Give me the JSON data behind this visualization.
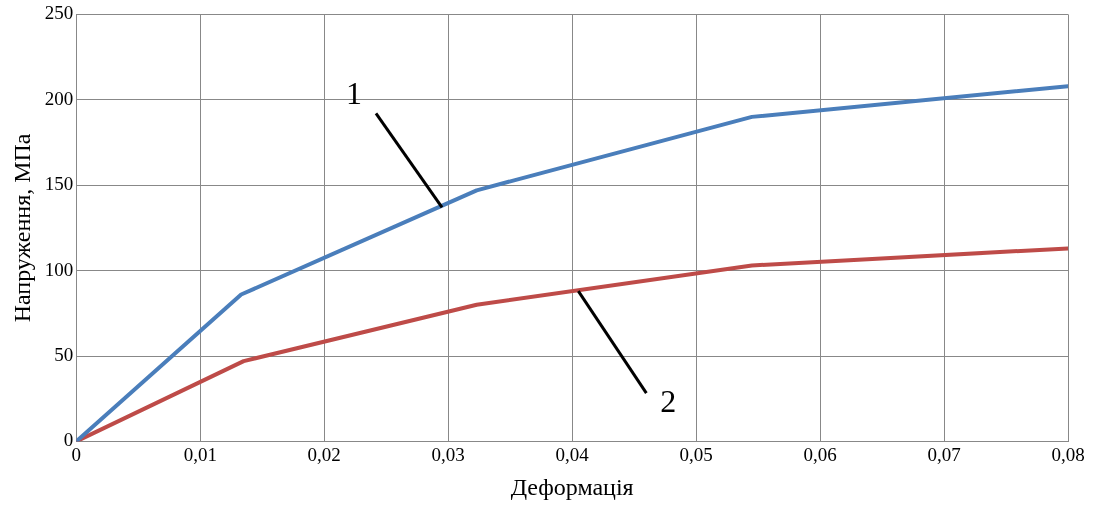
{
  "chart_data": {
    "type": "line",
    "xlabel": "Деформація",
    "ylabel": "Напруження, МПа",
    "series": [
      {
        "color": "#4a7ebb",
        "x": [
          0,
          0.0133,
          0.0323,
          0.0545,
          0.08
        ],
        "values": [
          0,
          86,
          147,
          190,
          208
        ]
      },
      {
        "color": "#be4b48",
        "x": [
          0,
          0.0135,
          0.0323,
          0.0545,
          0.08
        ],
        "values": [
          0,
          47,
          80,
          103,
          113
        ]
      }
    ],
    "annotations": [
      {
        "text": "1",
        "x": 0.0295,
        "y": 137
      },
      {
        "text": "2",
        "x": 0.0405,
        "y": 88
      }
    ],
    "xlim": [
      0,
      0.08
    ],
    "xticks": [
      0,
      {
        "value": 0.01,
        "label": "0,01"
      },
      {
        "value": 0.02,
        "label": "0,02"
      },
      {
        "value": 0.03,
        "label": "0,03"
      },
      {
        "value": 0.04,
        "label": "0,04"
      },
      {
        "value": 0.05,
        "label": "0,05"
      },
      {
        "value": 0.06,
        "label": "0,06"
      },
      {
        "value": 0.07,
        "label": "0,07"
      },
      {
        "value": 0.08,
        "label": "0,08"
      }
    ],
    "ylim": [
      0,
      250
    ],
    "yticks": [
      0,
      50,
      100,
      150,
      200,
      250
    ],
    "grid": true,
    "marker": "none",
    "line_style": "solid",
    "legend": false
  }
}
